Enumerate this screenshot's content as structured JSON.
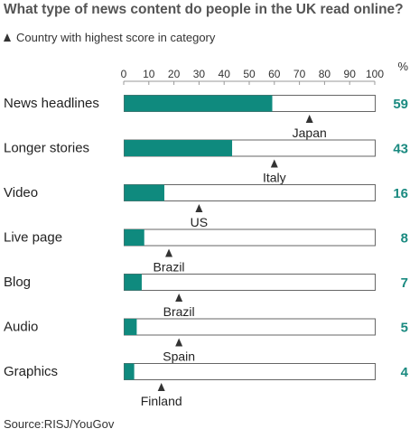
{
  "chart_data": {
    "type": "bar",
    "orientation": "horizontal",
    "title": "What type of news content do people in the UK read online?",
    "legend_text": "Country with highest score in category",
    "unit_label": "%",
    "xlim": [
      0,
      100
    ],
    "ticks": [
      0,
      10,
      20,
      30,
      40,
      50,
      60,
      70,
      80,
      90,
      100
    ],
    "categories": [
      "News headlines",
      "Longer stories",
      "Video",
      "Live page",
      "Blog",
      "Audio",
      "Graphics"
    ],
    "values": [
      59,
      43,
      16,
      8,
      7,
      5,
      4
    ],
    "highest_country": [
      "Japan",
      "Italy",
      "US",
      "Brazil",
      "Brazil",
      "Spain",
      "Finland"
    ],
    "highest_value": [
      74,
      60,
      30,
      18,
      22,
      22,
      15
    ],
    "bar_color": "#0f8a7e",
    "value_color": "#1a8a80",
    "source": "Source:RISJ/YouGov"
  }
}
